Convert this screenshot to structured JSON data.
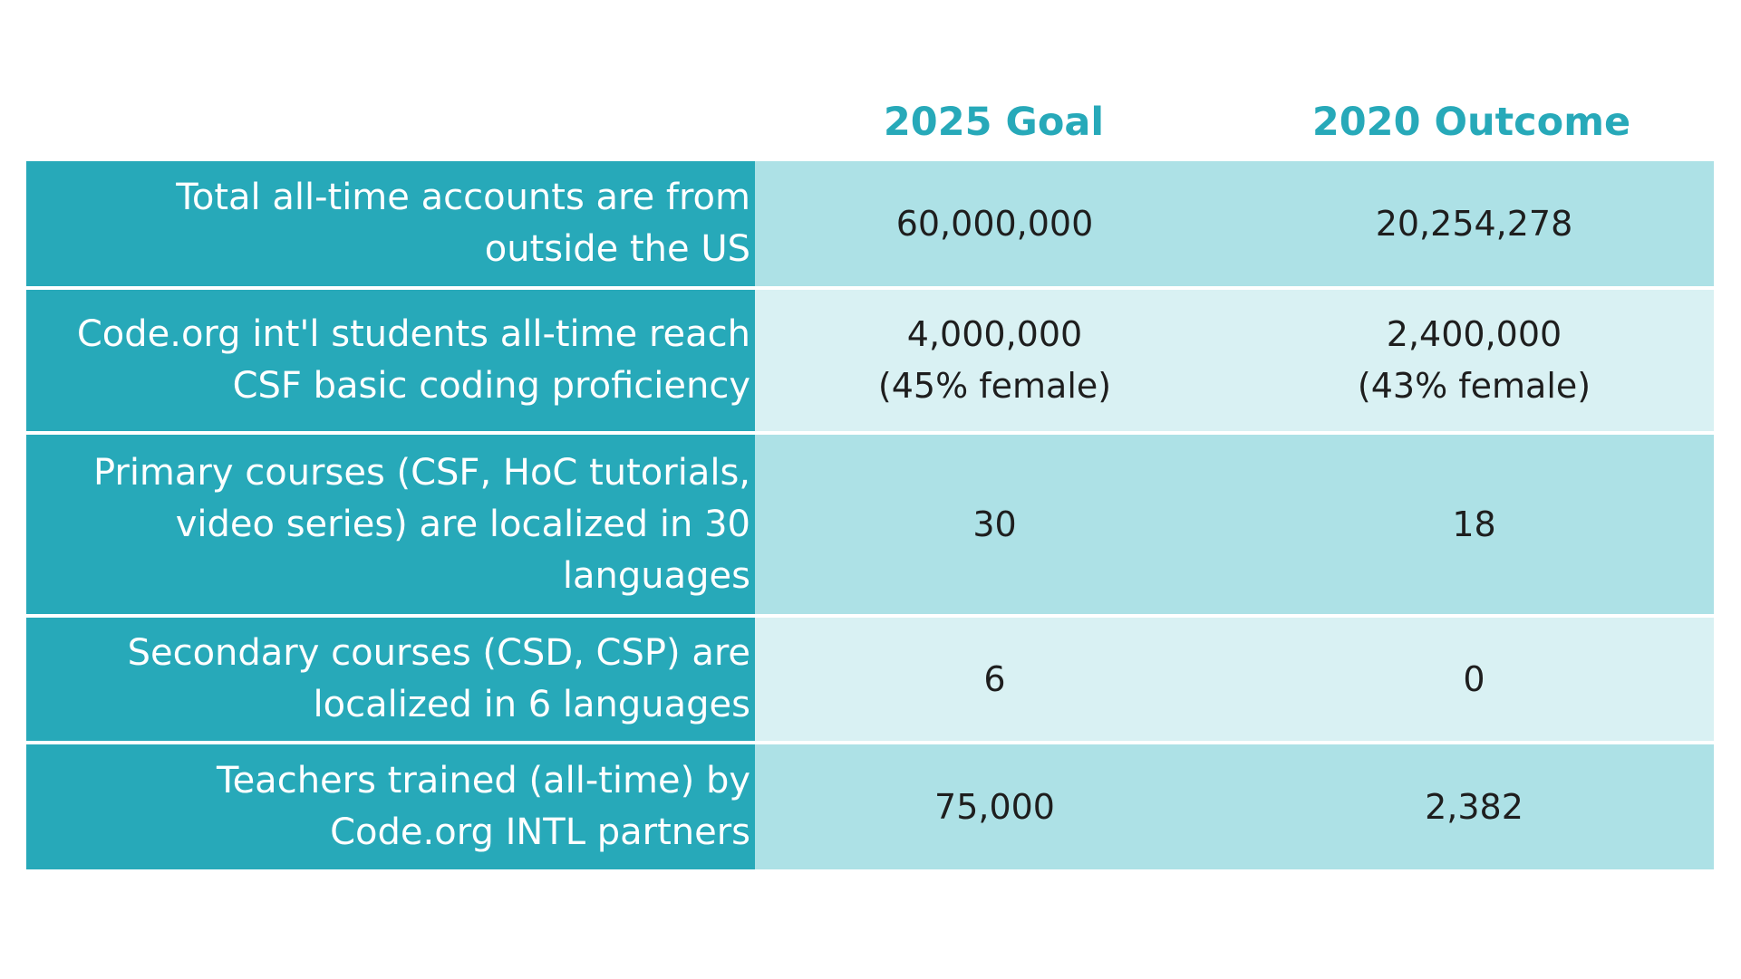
{
  "header": {
    "goal_label": "2025 Goal",
    "outcome_label": "2020 Outcome"
  },
  "rows": [
    {
      "label": "Total all-time accounts are from outside the US",
      "label_lines": [
        "Total all-time accounts are from",
        "outside the US"
      ],
      "goal": "60,000,000",
      "outcome": "20,254,278"
    },
    {
      "label": "Code.org int'l students all-time reach CSF basic coding proficiency",
      "label_lines": [
        "Code.org int'l students all-time reach",
        "CSF basic coding proficiency"
      ],
      "goal": "4,000,000\n(45% female)",
      "outcome": "2,400,000\n(43% female)"
    },
    {
      "label": "Primary courses (CSF, HoC tutorials, video series) are localized in 30 languages",
      "label_lines": [
        "Primary courses (CSF, HoC tutorials,",
        "video series) are localized in 30",
        "languages"
      ],
      "goal": "30",
      "outcome": "18"
    },
    {
      "label": "Secondary courses (CSD, CSP) are localized in 6 languages",
      "label_lines": [
        "Secondary courses (CSD, CSP) are",
        "localized in 6 languages"
      ],
      "goal": "6",
      "outcome": "0"
    },
    {
      "label": "Teachers trained (all-time) by Code.org INTL partners",
      "label_lines": [
        "Teachers trained (all-time) by",
        "Code.org INTL partners"
      ],
      "goal": "75,000",
      "outcome": "2,382"
    }
  ],
  "colors": {
    "accent_teal": "#27a9b9",
    "row_light": "#ade1e6",
    "row_pale": "#d9f1f3",
    "header_text": "#27a9b9"
  }
}
